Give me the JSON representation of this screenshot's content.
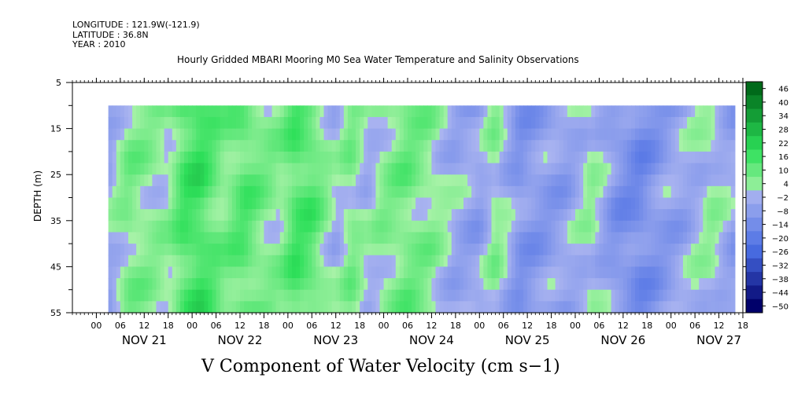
{
  "header": {
    "longitude_line": "LONGITUDE : 121.9W(-121.9)",
    "latitude_line": "LATITUDE : 36.8N",
    "year_line": "YEAR : 2010"
  },
  "chart_data": {
    "type": "heatmap",
    "title": "Hourly Gridded MBARI Mooring M0 Sea Water Temperature and Salinity Observations",
    "bottom_title": "V Component of Water Velocity (cm s−1)",
    "ylabel": "DEPTH (m)",
    "y_axis_inverted": true,
    "ylim": [
      5,
      55
    ],
    "y_ticks": [
      5,
      15,
      25,
      35,
      45,
      55
    ],
    "y_data_range": [
      10,
      55
    ],
    "x_hour_ticks_hours": [
      0,
      6,
      12,
      18
    ],
    "x_hour_ticks": [
      "00",
      "06",
      "12",
      "18",
      "00",
      "06",
      "12",
      "18",
      "00",
      "06",
      "12",
      "18",
      "00",
      "06",
      "12",
      "18",
      "00",
      "06",
      "12",
      "18",
      "00",
      "06",
      "12",
      "18",
      "00",
      "06",
      "12",
      "18"
    ],
    "x_day_labels": [
      "NOV 21",
      "NOV 22",
      "NOV 23",
      "NOV 24",
      "NOV 25",
      "NOV 26",
      "NOV 27"
    ],
    "x_range_hours": [
      -6,
      162
    ],
    "x_data_range_hours": [
      3,
      160
    ],
    "colorbar_levels": [
      46,
      40,
      34,
      28,
      22,
      16,
      10,
      4,
      -2,
      -8,
      -14,
      -20,
      -26,
      -32,
      -38,
      -44,
      -50
    ],
    "colorbar_labels": [
      "46",
      "40",
      "34",
      "28",
      "22",
      "16",
      "10",
      "4",
      "−2",
      "−8",
      "−14",
      "−20",
      "−26",
      "−32",
      "−38",
      "−44",
      "−50"
    ],
    "colors": {
      "positive_light": "#a8f2a8",
      "positive_mid": "#2ee05a",
      "positive_dark": "#006a1a",
      "negative_light": "#aab4f0",
      "negative_mid": "#4a6ee4",
      "negative_dark": "#00006a"
    },
    "column_means": [
      {
        "hour": 3,
        "v": -4
      },
      {
        "hour": 8,
        "v": 6
      },
      {
        "hour": 13,
        "v": 4
      },
      {
        "hour": 18,
        "v": 2
      },
      {
        "hour": 22,
        "v": 14
      },
      {
        "hour": 26,
        "v": 16
      },
      {
        "hour": 32,
        "v": 6
      },
      {
        "hour": 37,
        "v": 12
      },
      {
        "hour": 42,
        "v": 6
      },
      {
        "hour": 46,
        "v": 4
      },
      {
        "hour": 50,
        "v": 14
      },
      {
        "hour": 54,
        "v": 12
      },
      {
        "hour": 60,
        "v": -2
      },
      {
        "hour": 64,
        "v": 6
      },
      {
        "hour": 68,
        "v": -2
      },
      {
        "hour": 72,
        "v": 4
      },
      {
        "hour": 78,
        "v": 8
      },
      {
        "hour": 84,
        "v": 4
      },
      {
        "hour": 90,
        "v": -4
      },
      {
        "hour": 96,
        "v": -6
      },
      {
        "hour": 100,
        "v": 4
      },
      {
        "hour": 106,
        "v": -10
      },
      {
        "hour": 112,
        "v": -8
      },
      {
        "hour": 118,
        "v": -6
      },
      {
        "hour": 124,
        "v": 2
      },
      {
        "hour": 130,
        "v": -10
      },
      {
        "hour": 136,
        "v": -14
      },
      {
        "hour": 142,
        "v": -8
      },
      {
        "hour": 148,
        "v": -4
      },
      {
        "hour": 154,
        "v": 2
      },
      {
        "hour": 160,
        "v": -6
      }
    ]
  }
}
